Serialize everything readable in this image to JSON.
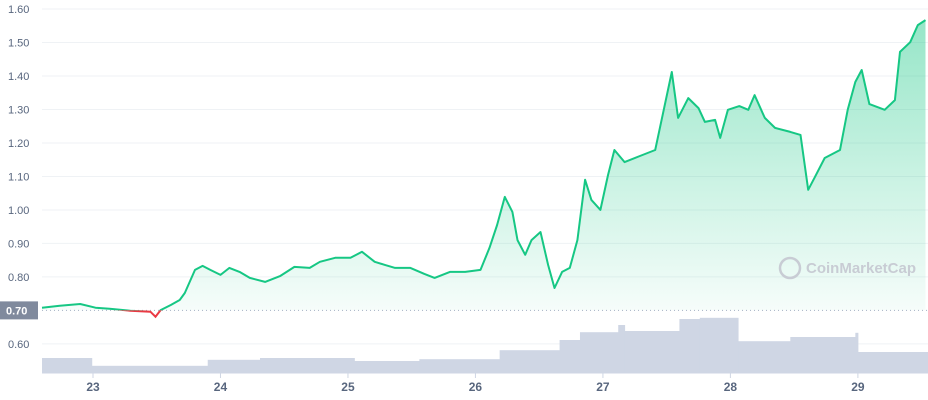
{
  "chart_data": {
    "type": "line",
    "watermark": "CoinMarketCap",
    "x": [
      22.6,
      22.74,
      22.9,
      23.02,
      23.13,
      23.29,
      23.45,
      23.49,
      23.53,
      23.61,
      23.68,
      23.72,
      23.8,
      23.86,
      23.92,
      24.0,
      24.07,
      24.15,
      24.23,
      24.35,
      24.47,
      24.58,
      24.7,
      24.78,
      24.9,
      25.02,
      25.11,
      25.21,
      25.29,
      25.37,
      25.49,
      25.6,
      25.68,
      25.8,
      25.92,
      26.04,
      26.11,
      26.17,
      26.23,
      26.29,
      26.33,
      26.39,
      26.44,
      26.51,
      26.57,
      26.62,
      26.68,
      26.74,
      26.8,
      26.86,
      26.91,
      26.98,
      27.04,
      27.09,
      27.17,
      27.29,
      27.41,
      27.46,
      27.54,
      27.59,
      27.67,
      27.75,
      27.8,
      27.88,
      27.92,
      27.98,
      28.07,
      28.14,
      28.19,
      28.27,
      28.35,
      28.47,
      28.55,
      28.61,
      28.66,
      28.74,
      28.86,
      28.92,
      28.98,
      29.03,
      29.09,
      29.21,
      29.29,
      29.33,
      29.41,
      29.47,
      29.53
    ],
    "series": [
      {
        "color": "#16c784",
        "below_color": "#ea3943",
        "values": [
          0.708,
          0.714,
          0.719,
          0.708,
          0.705,
          0.699,
          0.696,
          0.681,
          0.701,
          0.716,
          0.731,
          0.752,
          0.821,
          0.833,
          0.821,
          0.806,
          0.827,
          0.815,
          0.797,
          0.785,
          0.803,
          0.83,
          0.827,
          0.845,
          0.857,
          0.857,
          0.875,
          0.845,
          0.836,
          0.827,
          0.827,
          0.809,
          0.797,
          0.815,
          0.815,
          0.821,
          0.887,
          0.955,
          1.039,
          0.994,
          0.91,
          0.866,
          0.91,
          0.934,
          0.836,
          0.767,
          0.815,
          0.827,
          0.91,
          1.09,
          1.03,
          1.0,
          1.104,
          1.179,
          1.143,
          1.161,
          1.179,
          1.269,
          1.412,
          1.275,
          1.334,
          1.304,
          1.263,
          1.269,
          1.215,
          1.299,
          1.31,
          1.299,
          1.343,
          1.275,
          1.245,
          1.233,
          1.224,
          1.06,
          1.096,
          1.155,
          1.179,
          1.299,
          1.382,
          1.418,
          1.316,
          1.299,
          1.328,
          1.472,
          1.501,
          1.552,
          1.567
        ]
      }
    ],
    "reference": 0.7,
    "volume": {
      "color": "#cfd6e4",
      "x": [
        22.6,
        22.99,
        23.9,
        24.31,
        25.05,
        25.56,
        26.19,
        26.66,
        26.82,
        27.12,
        27.17,
        27.6,
        27.76,
        28.06,
        28.47,
        28.98,
        29.0
      ],
      "values": [
        25,
        12,
        22,
        25,
        20,
        23,
        38,
        55,
        68,
        80,
        70,
        90,
        92,
        53,
        60,
        67,
        35
      ]
    },
    "y2lim": [
      0,
      100
    ],
    "xlim": [
      22.6,
      29.55
    ],
    "xticks": [
      23,
      24,
      25,
      26,
      27,
      28,
      29
    ],
    "ylim": [
      0.513,
      1.627
    ],
    "yticks": [
      {
        "value": 0.6,
        "label": "0.60"
      },
      {
        "value": 0.7,
        "label": "0.70"
      },
      {
        "value": 0.8,
        "label": "0.80"
      },
      {
        "value": 0.9,
        "label": "0.90"
      },
      {
        "value": 1.0,
        "label": "1.00"
      },
      {
        "value": 1.1,
        "label": "1.10"
      },
      {
        "value": 1.2,
        "label": "1.20"
      },
      {
        "value": 1.3,
        "label": "1.30"
      },
      {
        "value": 1.4,
        "label": "1.40"
      },
      {
        "value": 1.5,
        "label": "1.50"
      },
      {
        "value": 1.6,
        "label": "1.60"
      }
    ],
    "grid": true
  }
}
